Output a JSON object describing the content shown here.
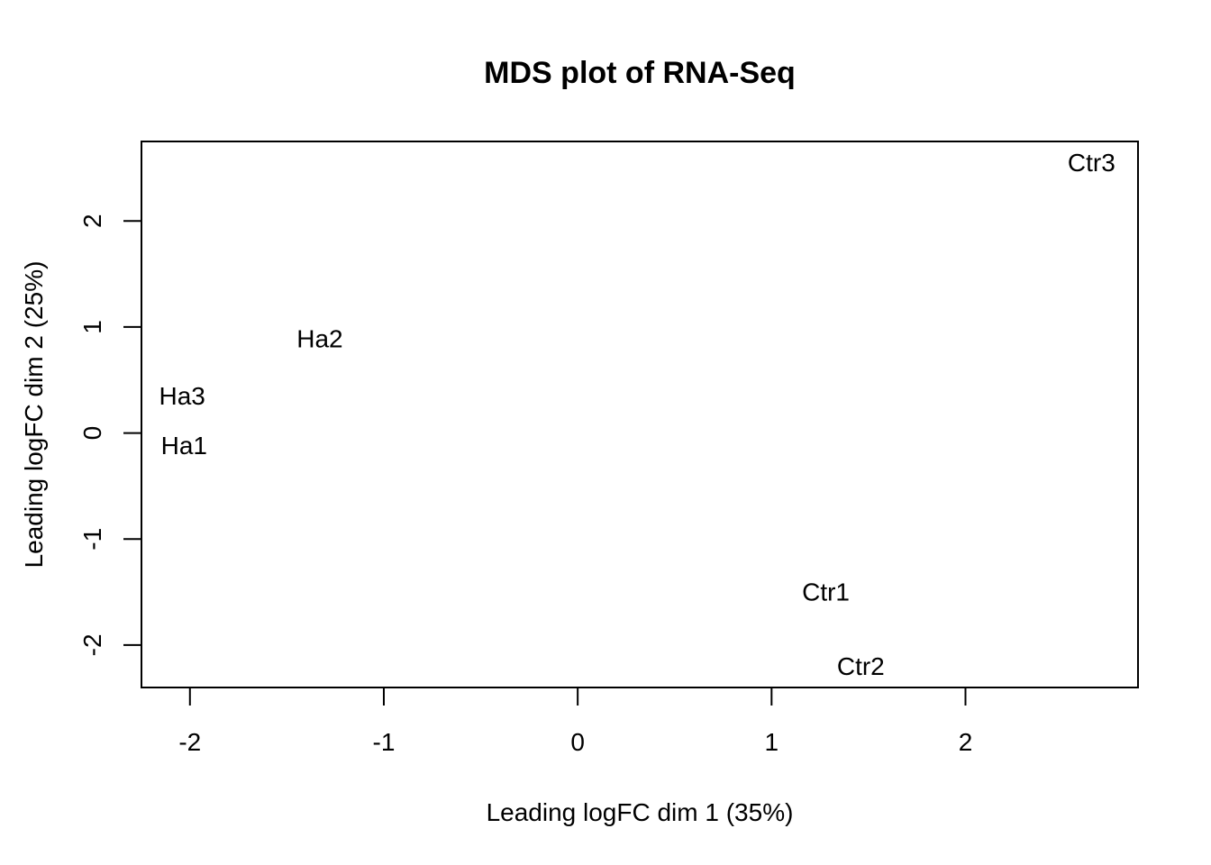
{
  "chart_data": {
    "type": "scatter",
    "title": "MDS plot of RNA-Seq",
    "xlabel": "Leading logFC dim 1 (35%)",
    "ylabel": "Leading logFC dim 2 (25%)",
    "xlim": [
      -2.25,
      2.89
    ],
    "ylim": [
      -2.4,
      2.75
    ],
    "x_ticks": [
      -2,
      -1,
      0,
      1,
      2
    ],
    "y_ticks": [
      -2,
      -1,
      0,
      1,
      2
    ],
    "x_tick_labels": [
      "-2",
      "-1",
      "0",
      "1",
      "2"
    ],
    "y_tick_labels": [
      "-2",
      "-1",
      "0",
      "1",
      "2"
    ],
    "grid": false,
    "points": [
      {
        "label": "Ha1",
        "x": -2.03,
        "y": -0.12
      },
      {
        "label": "Ha2",
        "x": -1.33,
        "y": 0.89
      },
      {
        "label": "Ha3",
        "x": -2.04,
        "y": 0.35
      },
      {
        "label": "Ctr1",
        "x": 1.28,
        "y": -1.5
      },
      {
        "label": "Ctr2",
        "x": 1.46,
        "y": -2.2
      },
      {
        "label": "Ctr3",
        "x": 2.65,
        "y": 2.55
      }
    ]
  }
}
